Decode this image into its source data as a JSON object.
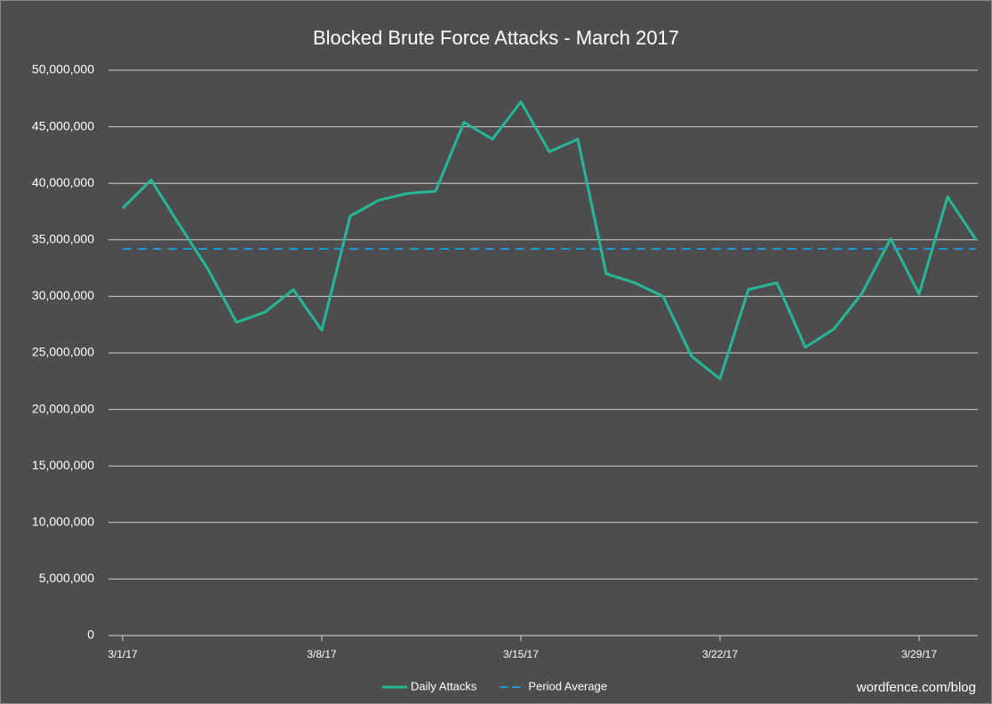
{
  "chart_data": {
    "type": "line",
    "title": "Blocked Brute Force Attacks - March 2017",
    "annotation": "wordfence.com/blog",
    "categories": [
      "3/1/17",
      null,
      null,
      null,
      null,
      null,
      null,
      "3/8/17",
      null,
      null,
      null,
      null,
      null,
      null,
      "3/15/17",
      null,
      null,
      null,
      null,
      null,
      null,
      "3/22/17",
      null,
      null,
      null,
      null,
      null,
      null,
      "3/29/17",
      null,
      null
    ],
    "series": [
      {
        "name": "Daily Attacks",
        "color": "#26b797",
        "dash": false,
        "values": [
          37800000,
          40300000,
          36300000,
          32400000,
          27700000,
          28600000,
          30600000,
          27000000,
          37100000,
          38500000,
          39100000,
          39300000,
          45400000,
          43900000,
          47200000,
          42800000,
          43900000,
          32000000,
          31200000,
          30000000,
          24700000,
          22700000,
          30600000,
          31200000,
          25500000,
          27100000,
          30300000,
          35100000,
          30200000,
          38800000,
          35000000
        ]
      },
      {
        "name": "Period Average",
        "color": "#1b9ad6",
        "dash": true,
        "values": [
          34200000,
          34200000,
          34200000,
          34200000,
          34200000,
          34200000,
          34200000,
          34200000,
          34200000,
          34200000,
          34200000,
          34200000,
          34200000,
          34200000,
          34200000,
          34200000,
          34200000,
          34200000,
          34200000,
          34200000,
          34200000,
          34200000,
          34200000,
          34200000,
          34200000,
          34200000,
          34200000,
          34200000,
          34200000,
          34200000,
          34200000
        ]
      }
    ],
    "ylim": [
      0,
      50000000
    ],
    "yticks": [
      0,
      {
        "value": 5000000,
        "label": "5,000,000"
      },
      {
        "value": 10000000,
        "label": "10,000,000"
      },
      {
        "value": 15000000,
        "label": "15,000,000"
      },
      {
        "value": 20000000,
        "label": "20,000,000"
      },
      {
        "value": 25000000,
        "label": "25,000,000"
      },
      {
        "value": 30000000,
        "label": "30,000,000"
      },
      {
        "value": 35000000,
        "label": "35,000,000"
      },
      {
        "value": 40000000,
        "label": "40,000,000"
      },
      {
        "value": 45000000,
        "label": "45,000,000"
      },
      {
        "value": 50000000,
        "label": "50,000,000"
      }
    ],
    "grid": true,
    "legend": "bottom"
  }
}
